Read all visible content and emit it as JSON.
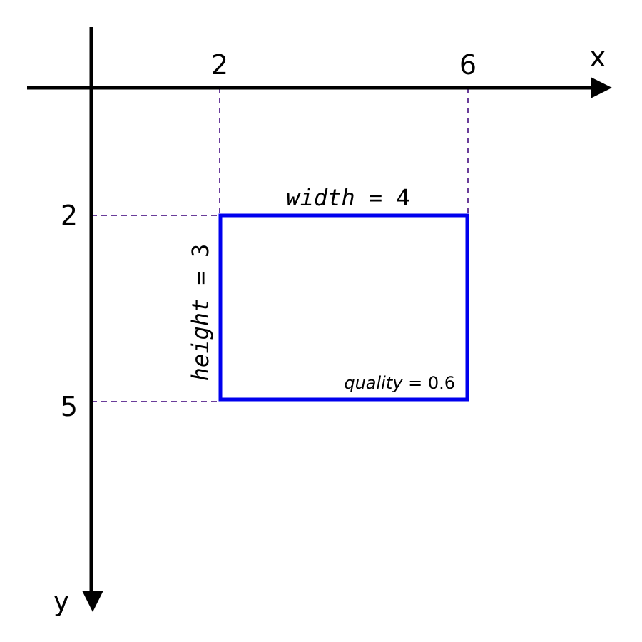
{
  "axes": {
    "x_label": "x",
    "y_label": "y"
  },
  "ticks": {
    "x": [
      "2",
      "6"
    ],
    "y": [
      "2",
      "5"
    ]
  },
  "box": {
    "x_min": 2,
    "x_max": 6,
    "y_min": 2,
    "y_max": 5,
    "width_var": "width",
    "width_eq": " = 4",
    "height_var": "height",
    "height_eq": " = 3",
    "quality_var": "quality",
    "quality_eq": " = 0.6"
  },
  "colors": {
    "axis": "#000000",
    "box": "#0000ee",
    "guides": "#6a3d9a"
  }
}
